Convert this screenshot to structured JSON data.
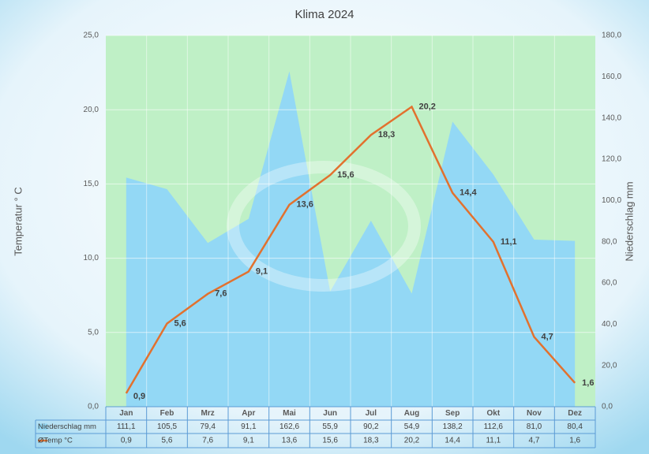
{
  "chart_data": {
    "type": "combo",
    "title": "Klima 2024",
    "y_label": "Temperatur ° C",
    "y2_label": "Niederschlag mm",
    "categories": [
      "Jan",
      "Feb",
      "Mrz",
      "Apr",
      "Mai",
      "Jun",
      "Jul",
      "Aug",
      "Sep",
      "Okt",
      "Nov",
      "Dez"
    ],
    "series": [
      {
        "name": "Niederschlag mm",
        "type": "area",
        "axis": "y2",
        "color": "#93d8f5",
        "values": [
          111.1,
          105.5,
          79.4,
          91.1,
          162.6,
          55.9,
          90.2,
          54.9,
          138.2,
          112.6,
          81.0,
          80.4
        ],
        "value_labels": [
          "111,1",
          "105,5",
          "79,4",
          "91,1",
          "162,6",
          "55,9",
          "90,2",
          "54,9",
          "138,2",
          "112,6",
          "81,0",
          "80,4"
        ]
      },
      {
        "name": "ØTemp °C",
        "type": "line",
        "color": "#e2712e",
        "values": [
          0.9,
          5.6,
          7.6,
          9.1,
          13.6,
          15.6,
          18.3,
          20.2,
          14.4,
          11.1,
          4.7,
          1.6
        ],
        "value_labels": [
          "0,9",
          "5,6",
          "7,6",
          "9,1",
          "13,6",
          "15,6",
          "18,3",
          "20,2",
          "14,4",
          "11,1",
          "4,7",
          "1,6"
        ]
      }
    ],
    "ylim": [
      0,
      25
    ],
    "yticks": [
      {
        "value": 0,
        "label": "0,0"
      },
      {
        "value": 5,
        "label": "5,0"
      },
      {
        "value": 10,
        "label": "10,0"
      },
      {
        "value": 15,
        "label": "15,0"
      },
      {
        "value": 20,
        "label": "20,0"
      },
      {
        "value": 25,
        "label": "25,0"
      }
    ],
    "y2lim": [
      0,
      180
    ],
    "y2ticks": [
      {
        "value": 0,
        "label": "0,0"
      },
      {
        "value": 20,
        "label": "20,0"
      },
      {
        "value": 40,
        "label": "40,0"
      },
      {
        "value": 60,
        "label": "60,0"
      },
      {
        "value": 80,
        "label": "80,0"
      },
      {
        "value": 100,
        "label": "100,0"
      },
      {
        "value": 120,
        "label": "120,0"
      },
      {
        "value": 140,
        "label": "140,0"
      },
      {
        "value": 160,
        "label": "160,0"
      },
      {
        "value": 180,
        "label": "180,0"
      }
    ],
    "grid": true,
    "plot_background": "#bff0c6"
  }
}
